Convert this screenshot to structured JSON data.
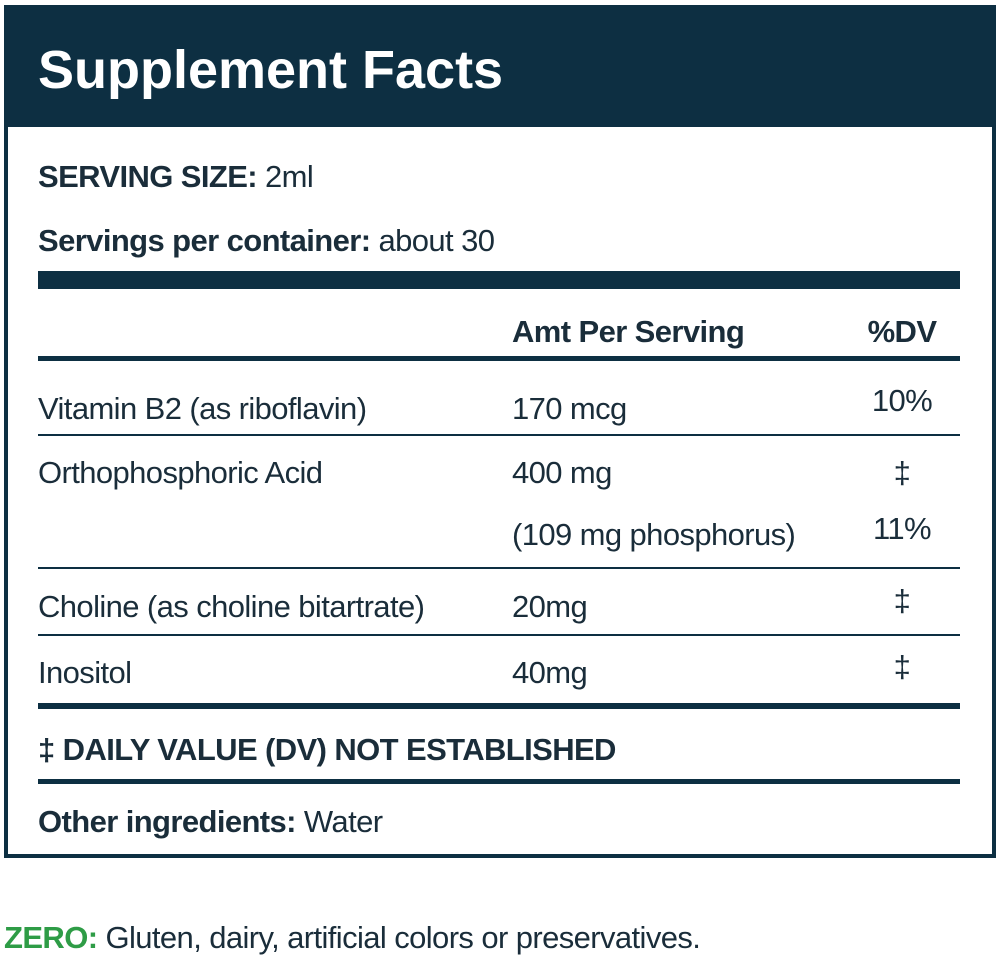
{
  "header": {
    "title": "Supplement Facts"
  },
  "serving": {
    "size_label": "SERVING SIZE:",
    "size_value": "2ml",
    "per_container_label": "Servings per container:",
    "per_container_value": "about 30"
  },
  "table": {
    "columns": [
      "Amt Per Serving",
      "%DV"
    ],
    "rows": [
      {
        "name": "Vitamin B2 (as riboflavin)",
        "amount": [
          "170 mcg"
        ],
        "dv": [
          "10%"
        ]
      },
      {
        "name": "Orthophosphoric Acid",
        "amount": [
          "400 mg",
          "(109 mg phosphorus)"
        ],
        "dv": [
          "‡",
          "11%"
        ]
      },
      {
        "name": "Choline (as choline bitartrate)",
        "amount": [
          "20mg"
        ],
        "dv": [
          "‡"
        ]
      },
      {
        "name": "Inositol",
        "amount": [
          "40mg"
        ],
        "dv": [
          "‡"
        ]
      }
    ]
  },
  "footnote": "‡ DAILY VALUE (DV) NOT ESTABLISHED",
  "other": {
    "label": "Other ingredients:",
    "value": "Water"
  },
  "zero": {
    "label": "ZERO:",
    "text": "Gluten, dairy, artificial colors or preservatives."
  }
}
